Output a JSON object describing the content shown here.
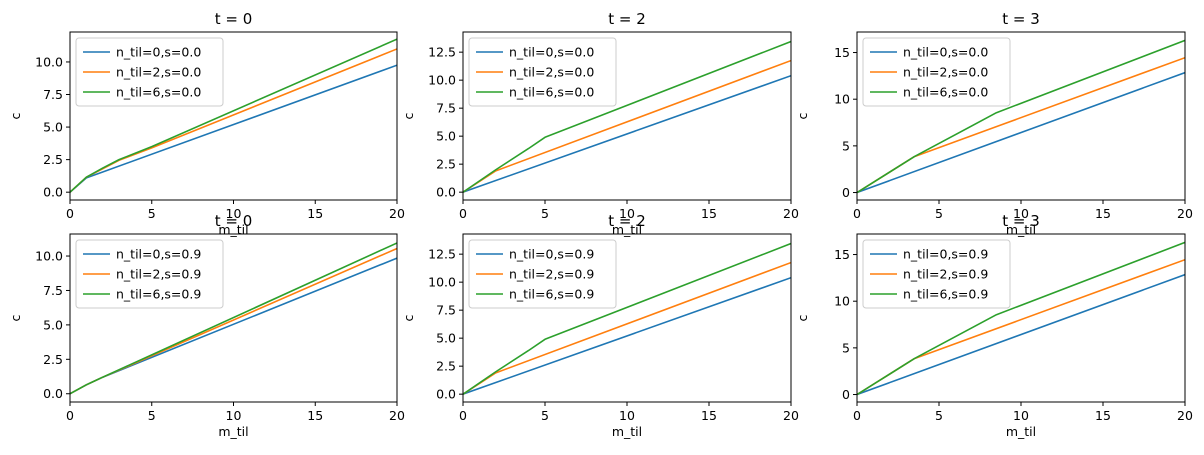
{
  "chart_data": [
    {
      "type": "line",
      "title": "t = 0",
      "xlabel": "m_til",
      "ylabel": "c",
      "xlim": [
        0,
        20
      ],
      "ylim": [
        -0.6,
        12.3
      ],
      "xticks": [
        0,
        5,
        10,
        15,
        20
      ],
      "yticks": [
        0.0,
        2.5,
        5.0,
        7.5,
        10.0
      ],
      "ytick_format": 1,
      "grid": false,
      "legend": "upper-left",
      "series": [
        {
          "name": "n_til=0,s=0.0",
          "color": "#1f77b4",
          "x": [
            0,
            1,
            2,
            20
          ],
          "y": [
            0,
            1.1,
            1.55,
            9.75
          ]
        },
        {
          "name": "n_til=2,s=0.0",
          "color": "#ff7f0e",
          "x": [
            0,
            1,
            2,
            3,
            5,
            20
          ],
          "y": [
            0,
            1.15,
            1.8,
            2.45,
            3.4,
            11.0
          ]
        },
        {
          "name": "n_til=6,s=0.0",
          "color": "#2ca02c",
          "x": [
            0,
            1,
            2,
            3,
            5,
            20
          ],
          "y": [
            0,
            1.15,
            1.85,
            2.5,
            3.5,
            11.75
          ]
        }
      ]
    },
    {
      "type": "line",
      "title": "t = 2",
      "xlabel": "m_til",
      "ylabel": "c",
      "xlim": [
        0,
        20
      ],
      "ylim": [
        -0.7,
        14.3
      ],
      "xticks": [
        0,
        5,
        10,
        15,
        20
      ],
      "yticks": [
        0.0,
        2.5,
        5.0,
        7.5,
        10.0,
        12.5
      ],
      "ytick_format": 1,
      "grid": false,
      "legend": "upper-left",
      "series": [
        {
          "name": "n_til=0,s=0.0",
          "color": "#1f77b4",
          "x": [
            0,
            20
          ],
          "y": [
            0,
            10.4
          ]
        },
        {
          "name": "n_til=2,s=0.0",
          "color": "#ff7f0e",
          "x": [
            0,
            2,
            20
          ],
          "y": [
            0,
            1.9,
            11.75
          ]
        },
        {
          "name": "n_til=6,s=0.0",
          "color": "#2ca02c",
          "x": [
            0,
            2,
            4,
            5,
            20
          ],
          "y": [
            0,
            2.0,
            3.9,
            4.9,
            13.45
          ]
        }
      ]
    },
    {
      "type": "line",
      "title": "t = 3",
      "xlabel": "m_til",
      "ylabel": "c",
      "xlim": [
        0,
        20
      ],
      "ylim": [
        -0.8,
        17.2
      ],
      "xticks": [
        0,
        5,
        10,
        15,
        20
      ],
      "yticks": [
        0,
        5,
        10,
        15
      ],
      "ytick_format": 0,
      "grid": false,
      "legend": "upper-left",
      "series": [
        {
          "name": "n_til=0,s=0.0",
          "color": "#1f77b4",
          "x": [
            0,
            20
          ],
          "y": [
            0,
            12.85
          ]
        },
        {
          "name": "n_til=2,s=0.0",
          "color": "#ff7f0e",
          "x": [
            0,
            3.5,
            20
          ],
          "y": [
            0,
            3.85,
            14.45
          ]
        },
        {
          "name": "n_til=6,s=0.0",
          "color": "#2ca02c",
          "x": [
            0,
            3.5,
            8.5,
            20
          ],
          "y": [
            0,
            3.85,
            8.55,
            16.3
          ]
        }
      ]
    },
    {
      "type": "line",
      "title": "t = 0",
      "xlabel": "m_til",
      "ylabel": "c",
      "xlim": [
        0,
        20
      ],
      "ylim": [
        -0.6,
        11.6
      ],
      "xticks": [
        0,
        5,
        10,
        15,
        20
      ],
      "yticks": [
        0.0,
        2.5,
        5.0,
        7.5,
        10.0
      ],
      "ytick_format": 1,
      "grid": false,
      "legend": "upper-left",
      "series": [
        {
          "name": "n_til=0,s=0.9",
          "color": "#1f77b4",
          "x": [
            0,
            1,
            2,
            20
          ],
          "y": [
            0,
            0.65,
            1.2,
            9.85
          ]
        },
        {
          "name": "n_til=2,s=0.9",
          "color": "#ff7f0e",
          "x": [
            0,
            1,
            2,
            20
          ],
          "y": [
            0,
            0.65,
            1.2,
            10.55
          ]
        },
        {
          "name": "n_til=6,s=0.9",
          "color": "#2ca02c",
          "x": [
            0,
            1,
            2,
            20
          ],
          "y": [
            0,
            0.65,
            1.2,
            10.95
          ]
        }
      ]
    },
    {
      "type": "line",
      "title": "t = 2",
      "xlabel": "m_til",
      "ylabel": "c",
      "xlim": [
        0,
        20
      ],
      "ylim": [
        -0.7,
        14.3
      ],
      "xticks": [
        0,
        5,
        10,
        15,
        20
      ],
      "yticks": [
        0.0,
        2.5,
        5.0,
        7.5,
        10.0,
        12.5
      ],
      "ytick_format": 1,
      "grid": false,
      "legend": "upper-left",
      "series": [
        {
          "name": "n_til=0,s=0.9",
          "color": "#1f77b4",
          "x": [
            0,
            20
          ],
          "y": [
            0,
            10.4
          ]
        },
        {
          "name": "n_til=2,s=0.9",
          "color": "#ff7f0e",
          "x": [
            0,
            2,
            20
          ],
          "y": [
            0,
            1.9,
            11.75
          ]
        },
        {
          "name": "n_til=6,s=0.9",
          "color": "#2ca02c",
          "x": [
            0,
            2,
            4,
            5,
            20
          ],
          "y": [
            0,
            2.0,
            3.9,
            4.9,
            13.45
          ]
        }
      ]
    },
    {
      "type": "line",
      "title": "t = 3",
      "xlabel": "m_til",
      "ylabel": "c",
      "xlim": [
        0,
        20
      ],
      "ylim": [
        -0.8,
        17.2
      ],
      "xticks": [
        0,
        5,
        10,
        15,
        20
      ],
      "yticks": [
        0,
        5,
        10,
        15
      ],
      "ytick_format": 0,
      "grid": false,
      "legend": "upper-left",
      "series": [
        {
          "name": "n_til=0,s=0.9",
          "color": "#1f77b4",
          "x": [
            0,
            20
          ],
          "y": [
            0,
            12.85
          ]
        },
        {
          "name": "n_til=2,s=0.9",
          "color": "#ff7f0e",
          "x": [
            0,
            3.5,
            20
          ],
          "y": [
            0,
            3.85,
            14.45
          ]
        },
        {
          "name": "n_til=6,s=0.9",
          "color": "#2ca02c",
          "x": [
            0,
            3.5,
            8.5,
            20
          ],
          "y": [
            0,
            3.85,
            8.55,
            16.3
          ]
        }
      ]
    }
  ]
}
